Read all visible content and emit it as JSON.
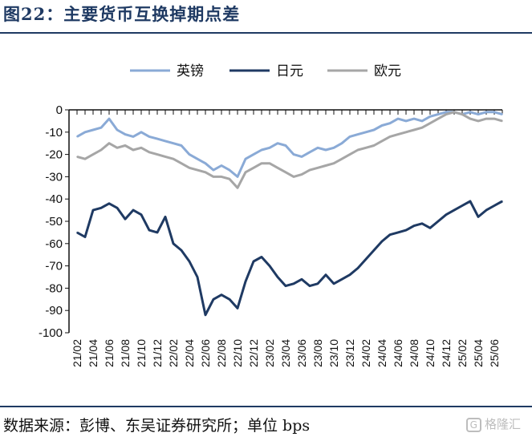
{
  "header": {
    "title": "图22：主要货币互换掉期点差"
  },
  "footer": {
    "source": "数据来源：彭博、东吴证券研究所；单位 bps",
    "watermark_icon": "G",
    "watermark_text": "格隆汇"
  },
  "chart_data": {
    "type": "line",
    "ylim": [
      -100,
      0
    ],
    "yticks": [
      0,
      -10,
      -20,
      -30,
      -40,
      -50,
      -60,
      -70,
      -80,
      -90,
      -100
    ],
    "xticks": [
      "21/02",
      "21/04",
      "21/06",
      "21/08",
      "21/10",
      "21/12",
      "22/02",
      "22/04",
      "22/06",
      "22/08",
      "22/10",
      "22/12",
      "23/02",
      "23/04",
      "23/06",
      "23/08",
      "23/10",
      "23/12",
      "24/02",
      "24/04",
      "24/06",
      "24/08",
      "24/10",
      "24/12",
      "25/02",
      "25/04",
      "25/06"
    ],
    "legend_position": "top-center",
    "grid": false,
    "series": [
      {
        "name": "英镑",
        "color": "#8aaad6",
        "x": [
          "21/02",
          "21/03",
          "21/04",
          "21/05",
          "21/06",
          "21/07",
          "21/08",
          "21/09",
          "21/10",
          "21/11",
          "21/12",
          "22/01",
          "22/02",
          "22/03",
          "22/04",
          "22/05",
          "22/06",
          "22/07",
          "22/08",
          "22/09",
          "22/10",
          "22/11",
          "22/12",
          "23/01",
          "23/02",
          "23/03",
          "23/04",
          "23/05",
          "23/06",
          "23/07",
          "23/08",
          "23/09",
          "23/10",
          "23/11",
          "23/12",
          "24/01",
          "24/02",
          "24/03",
          "24/04",
          "24/05",
          "24/06",
          "24/07",
          "24/08",
          "24/09",
          "24/10",
          "24/11",
          "24/12",
          "25/01",
          "25/02",
          "25/03",
          "25/04",
          "25/05",
          "25/06",
          "25/07"
        ],
        "values": [
          -12,
          -10,
          -9,
          -8,
          -4,
          -9,
          -11,
          -12,
          -10,
          -12,
          -13,
          -14,
          -15,
          -16,
          -20,
          -22,
          -24,
          -27,
          -25,
          -27,
          -30,
          -22,
          -20,
          -18,
          -17,
          -15,
          -16,
          -20,
          -21,
          -19,
          -17,
          -18,
          -17,
          -15,
          -12,
          -11,
          -10,
          -9,
          -7,
          -6,
          -4,
          -5,
          -4,
          -5,
          -3,
          -2,
          -1,
          -1,
          -2,
          -1,
          -2,
          -1,
          -1,
          -2
        ]
      },
      {
        "name": "日元",
        "color": "#1f3a63",
        "x": [
          "21/02",
          "21/03",
          "21/04",
          "21/05",
          "21/06",
          "21/07",
          "21/08",
          "21/09",
          "21/10",
          "21/11",
          "21/12",
          "22/01",
          "22/02",
          "22/03",
          "22/04",
          "22/05",
          "22/06",
          "22/07",
          "22/08",
          "22/09",
          "22/10",
          "22/11",
          "22/12",
          "23/01",
          "23/02",
          "23/03",
          "23/04",
          "23/05",
          "23/06",
          "23/07",
          "23/08",
          "23/09",
          "23/10",
          "23/11",
          "23/12",
          "24/01",
          "24/02",
          "24/03",
          "24/04",
          "24/05",
          "24/06",
          "24/07",
          "24/08",
          "24/09",
          "24/10",
          "24/11",
          "24/12",
          "25/01",
          "25/02",
          "25/03",
          "25/04",
          "25/05",
          "25/06",
          "25/07"
        ],
        "values": [
          -55,
          -57,
          -45,
          -44,
          -42,
          -44,
          -49,
          -45,
          -47,
          -54,
          -55,
          -48,
          -60,
          -63,
          -68,
          -75,
          -92,
          -85,
          -83,
          -85,
          -89,
          -77,
          -68,
          -66,
          -70,
          -75,
          -79,
          -78,
          -76,
          -79,
          -78,
          -74,
          -78,
          -76,
          -74,
          -71,
          -67,
          -63,
          -59,
          -56,
          -55,
          -54,
          -52,
          -51,
          -53,
          -50,
          -47,
          -45,
          -43,
          -41,
          -48,
          -45,
          -43,
          -41
        ]
      },
      {
        "name": "欧元",
        "color": "#a6a6a6",
        "x": [
          "21/02",
          "21/03",
          "21/04",
          "21/05",
          "21/06",
          "21/07",
          "21/08",
          "21/09",
          "21/10",
          "21/11",
          "21/12",
          "22/01",
          "22/02",
          "22/03",
          "22/04",
          "22/05",
          "22/06",
          "22/07",
          "22/08",
          "22/09",
          "22/10",
          "22/11",
          "22/12",
          "23/01",
          "23/02",
          "23/03",
          "23/04",
          "23/05",
          "23/06",
          "23/07",
          "23/08",
          "23/09",
          "23/10",
          "23/11",
          "23/12",
          "24/01",
          "24/02",
          "24/03",
          "24/04",
          "24/05",
          "24/06",
          "24/07",
          "24/08",
          "24/09",
          "24/10",
          "24/11",
          "24/12",
          "25/01",
          "25/02",
          "25/03",
          "25/04",
          "25/05",
          "25/06",
          "25/07"
        ],
        "values": [
          -21,
          -22,
          -20,
          -18,
          -15,
          -17,
          -16,
          -18,
          -17,
          -19,
          -20,
          -21,
          -22,
          -24,
          -26,
          -27,
          -28,
          -30,
          -30,
          -31,
          -35,
          -28,
          -26,
          -24,
          -24,
          -26,
          -28,
          -30,
          -29,
          -27,
          -26,
          -25,
          -24,
          -22,
          -20,
          -18,
          -17,
          -16,
          -14,
          -12,
          -11,
          -10,
          -9,
          -8,
          -6,
          -4,
          -2,
          -1,
          -2,
          -4,
          -5,
          -4,
          -4,
          -5
        ]
      }
    ]
  }
}
